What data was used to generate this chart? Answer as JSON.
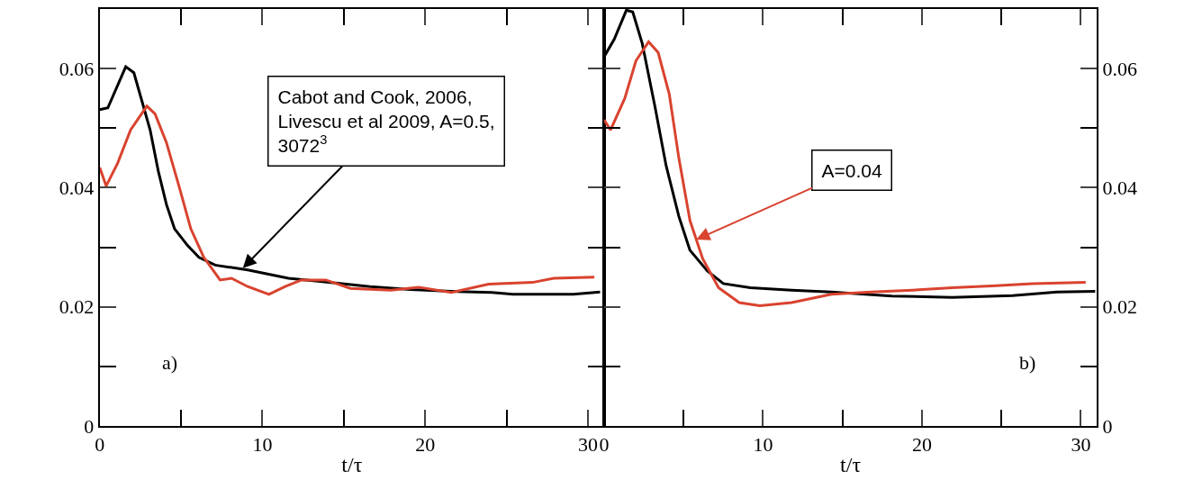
{
  "chart_data": [
    {
      "type": "line",
      "xlabel": "t/τ",
      "xlim": [
        0,
        31
      ],
      "ylim": [
        0,
        0.07
      ],
      "xticks": [
        0,
        10,
        20,
        30
      ],
      "yticks": [
        0,
        0.02,
        0.04,
        0.06
      ],
      "marker": "none",
      "line_style": "solid",
      "series": [
        {
          "color": "#000000",
          "x": [
            0,
            0.5,
            1.6,
            2.1,
            2.6,
            3.1,
            3.6,
            4.1,
            4.6,
            5.4,
            6.1,
            7.1,
            9.1,
            11.6,
            14.1,
            16.6,
            19.1,
            21.6,
            24.1,
            25.4,
            29.1,
            30.75
          ],
          "values": [
            0.0531,
            0.0534,
            0.0603,
            0.0593,
            0.0545,
            0.0497,
            0.0428,
            0.0372,
            0.0331,
            0.0303,
            0.0283,
            0.027,
            0.0262,
            0.0248,
            0.0241,
            0.0234,
            0.0229,
            0.0226,
            0.0224,
            0.0221,
            0.0221,
            0.0225
          ]
        },
        {
          "color": "#d9432f",
          "x": [
            0,
            0.4,
            1.1,
            1.9,
            2.9,
            3.4,
            4.1,
            4.9,
            5.6,
            6.4,
            7.4,
            8.1,
            9.1,
            10.4,
            11.4,
            12.4,
            13.9,
            15.4,
            17.9,
            19.6,
            21.6,
            23.9,
            26.6,
            27.9,
            30.4
          ],
          "values": [
            0.0434,
            0.0403,
            0.0441,
            0.0497,
            0.0537,
            0.0524,
            0.0476,
            0.04,
            0.0331,
            0.0283,
            0.0245,
            0.0248,
            0.0234,
            0.0221,
            0.0234,
            0.0245,
            0.0245,
            0.0231,
            0.0228,
            0.0233,
            0.0224,
            0.0238,
            0.0241,
            0.0248,
            0.025
          ]
        }
      ],
      "annotations": [
        {
          "text": "Cabot and Cook, 2006,\nLivescu et al 2009, A=0.5,\n3072$^{3}$",
          "x": 8.8,
          "y": 0.0265
        },
        "a)"
      ]
    },
    {
      "type": "line",
      "xlabel": "t/τ",
      "xlim": [
        0,
        31
      ],
      "ylim": [
        0,
        0.07
      ],
      "xticks": [
        0,
        10,
        20,
        30
      ],
      "yticks": [
        0,
        0.02,
        0.04,
        0.06
      ],
      "marker": "none",
      "line_style": "solid",
      "series": [
        {
          "color": "#000000",
          "x": [
            0,
            0.63,
            1.4,
            1.8,
            2.4,
            3.2,
            3.9,
            4.7,
            5.4,
            6.5,
            7.5,
            9.2,
            11.8,
            14.3,
            18.1,
            21.9,
            25.7,
            28.5,
            30.9
          ],
          "values": [
            0.062,
            0.0649,
            0.0698,
            0.0695,
            0.0642,
            0.0536,
            0.0437,
            0.0352,
            0.0295,
            0.026,
            0.0239,
            0.0232,
            0.0228,
            0.0225,
            0.0218,
            0.0216,
            0.0219,
            0.0225,
            0.0226
          ]
        },
        {
          "color": "#d9432f",
          "x": [
            0,
            0.4,
            1.3,
            2,
            2.8,
            3.4,
            4.1,
            4.7,
            5.4,
            6.2,
            7.2,
            8.5,
            9.8,
            11.8,
            14.3,
            16.8,
            19.4,
            21.9,
            24.4,
            26.96,
            30.3
          ],
          "values": [
            0.0514,
            0.0497,
            0.055,
            0.0613,
            0.0645,
            0.0627,
            0.0557,
            0.045,
            0.0345,
            0.0281,
            0.0232,
            0.0207,
            0.0202,
            0.0207,
            0.0221,
            0.0225,
            0.0228,
            0.0232,
            0.0235,
            0.0239,
            0.0241
          ]
        }
      ],
      "annotations": [
        {
          "text": "A=0.04",
          "x": 5.8,
          "y": 0.0313
        },
        "b)"
      ]
    }
  ]
}
